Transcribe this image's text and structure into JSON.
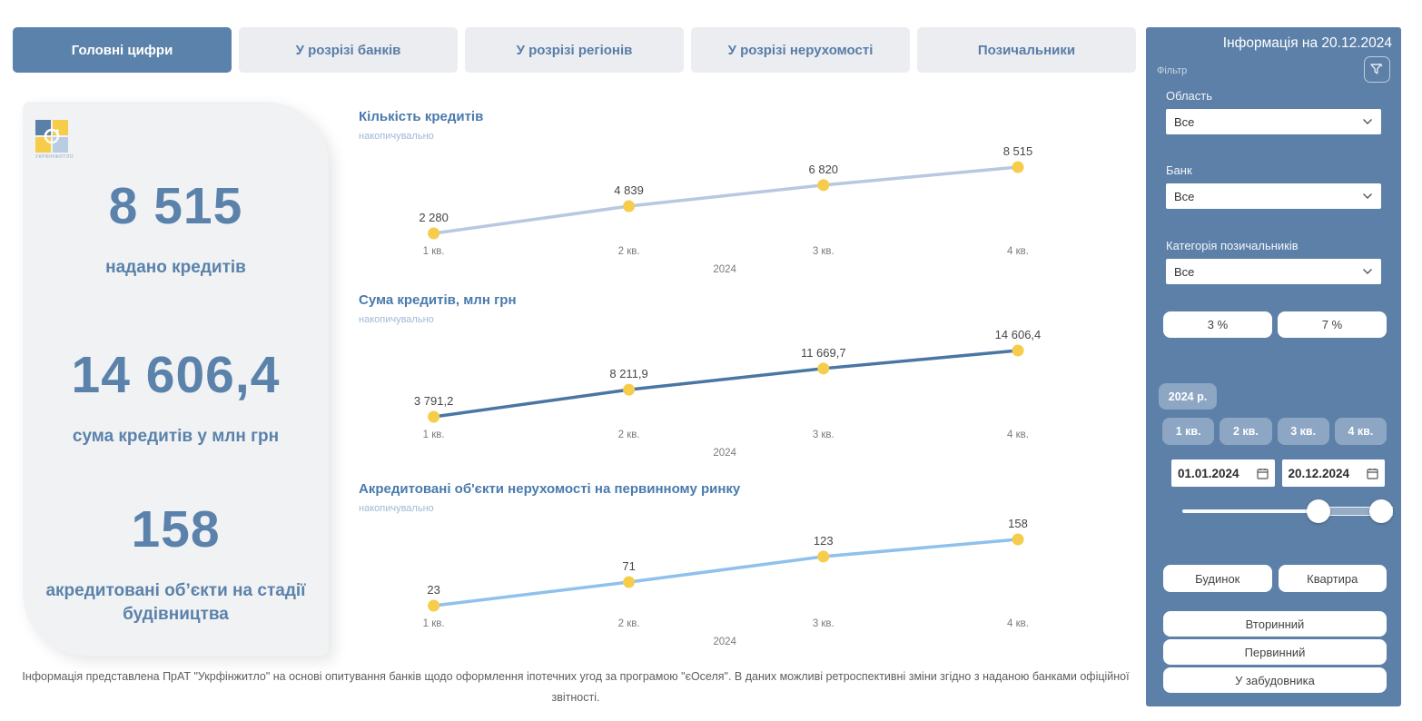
{
  "accent_color": "#5b82ab",
  "sidebar_color": "#5d80a8",
  "tabs": [
    {
      "label": "Головні цифри",
      "active": true
    },
    {
      "label": "У розрізі банків",
      "active": false
    },
    {
      "label": "У розрізі регіонів",
      "active": false
    },
    {
      "label": "У розрізі нерухомості",
      "active": false
    },
    {
      "label": "Позичальники",
      "active": false
    }
  ],
  "kpi": {
    "logo_caption": "УКРФІНЖИТЛО",
    "items": [
      {
        "value": "8 515",
        "label": "надано кредитів"
      },
      {
        "value": "14 606,4",
        "label": "сума кредитів у млн грн"
      },
      {
        "value": "158",
        "label": "акредитовані об’єкти на стадії будівництва"
      }
    ]
  },
  "chart_data": [
    {
      "type": "line",
      "title": "Кількість кредитів",
      "subtitle": "накопичувально",
      "categories": [
        "1 кв.",
        "2 кв.",
        "3 кв.",
        "4 кв."
      ],
      "values": [
        2280,
        4839,
        6820,
        8515
      ],
      "value_labels": [
        "2 280",
        "4 839",
        "6 820",
        "8 515"
      ],
      "x_group_label": "2024",
      "line_color": "#b6c9e0",
      "point_color": "#f5cd4a",
      "grid": false,
      "legend": false
    },
    {
      "type": "line",
      "title": "Сума кредитів, млн грн",
      "subtitle": "накопичувально",
      "categories": [
        "1 кв.",
        "2 кв.",
        "3 кв.",
        "4 кв."
      ],
      "values": [
        3791.2,
        8211.9,
        11669.7,
        14606.4
      ],
      "value_labels": [
        "3 791,2",
        "8 211,9",
        "11 669,7",
        "14 606,4"
      ],
      "x_group_label": "2024",
      "line_color": "#4a76a4",
      "point_color": "#f5cd4a",
      "grid": false,
      "legend": false
    },
    {
      "type": "line",
      "title": "Акредитовані об'єкти нерухомості на первинному ринку",
      "subtitle": "накопичувально",
      "categories": [
        "1 кв.",
        "2 кв.",
        "3 кв.",
        "4 кв."
      ],
      "values": [
        23,
        71,
        123,
        158
      ],
      "value_labels": [
        "23",
        "71",
        "123",
        "158"
      ],
      "x_group_label": "2024",
      "line_color": "#8fc1ec",
      "point_color": "#f5cd4a",
      "grid": false,
      "legend": false
    }
  ],
  "sidebar": {
    "title": "Інформація на 20.12.2024",
    "filter_label": "Фільтр",
    "filters": [
      {
        "label": "Область",
        "value": "Все"
      },
      {
        "label": "Банк",
        "value": "Все"
      },
      {
        "label": "Категорія позичальників",
        "value": "Все"
      }
    ],
    "rates": [
      "3 %",
      "7 %"
    ],
    "year": "2024 р.",
    "quarters": [
      "1 кв.",
      "2 кв.",
      "3 кв.",
      "4 кв."
    ],
    "date_from": "01.01.2024",
    "date_to": "20.12.2024",
    "property_types": [
      "Будинок",
      "Квартира"
    ],
    "markets": [
      "Вторинний",
      "Первинний",
      "У забудовника"
    ]
  },
  "footer": {
    "disclaimer": "Інформація представлена ПрАТ \"Укрфінжитло\" на основі опитування банків щодо оформлення іпотечних угод за програмою \"єОселя\". В даних можливі ретроспективні зміни згідно з наданою банками офіційної звітності."
  }
}
